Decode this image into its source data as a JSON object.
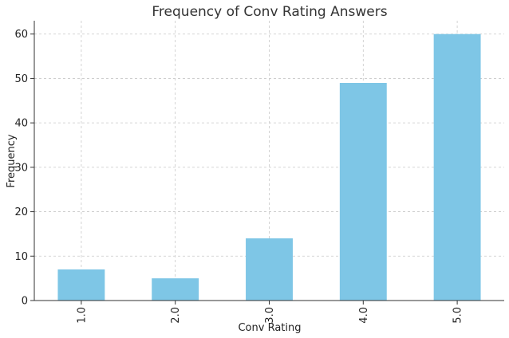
{
  "chart_data": {
    "type": "bar",
    "title": "Frequency of Conv Rating Answers",
    "xlabel": "Conv Rating",
    "ylabel": "Frequency",
    "categories": [
      "1.0",
      "2.0",
      "3.0",
      "4.0",
      "5.0"
    ],
    "values": [
      7,
      5,
      14,
      49,
      60
    ],
    "ylim": [
      0,
      63
    ],
    "yticks": [
      0,
      10,
      20,
      30,
      40,
      50,
      60
    ],
    "grid": true,
    "bar_color": "#7ec6e6"
  }
}
